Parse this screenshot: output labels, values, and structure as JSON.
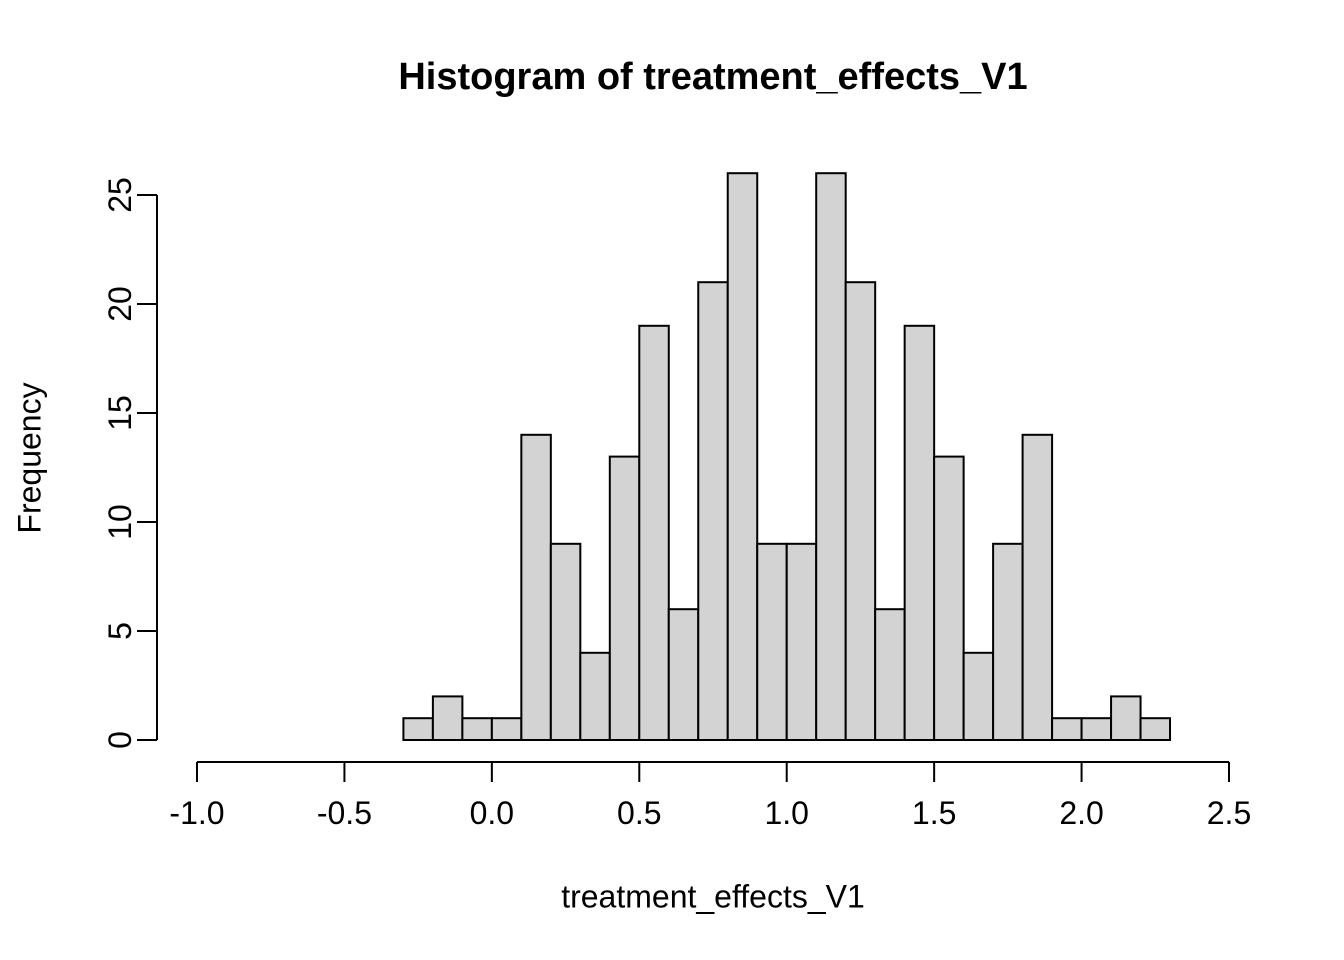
{
  "chart_data": {
    "type": "bar",
    "subtype": "histogram",
    "title": "Histogram of treatment_effects_V1",
    "xlabel": "treatment_effects_V1",
    "ylabel": "Frequency",
    "bin_start": -0.3,
    "bin_width": 0.1,
    "counts": [
      1,
      2,
      1,
      1,
      14,
      9,
      4,
      13,
      19,
      6,
      21,
      26,
      9,
      9,
      26,
      21,
      6,
      19,
      13,
      4,
      9,
      14,
      1,
      1,
      2,
      1
    ],
    "x_tick_values": [
      -1.0,
      -0.5,
      0.0,
      0.5,
      1.0,
      1.5,
      2.0,
      2.5
    ],
    "x_tick_labels": [
      "-1.0",
      "-0.5",
      "0.0",
      "0.5",
      "1.0",
      "1.5",
      "2.0",
      "2.5"
    ],
    "y_tick_values": [
      0,
      5,
      10,
      15,
      20,
      25
    ],
    "y_tick_labels": [
      "0",
      "5",
      "10",
      "15",
      "20",
      "25"
    ],
    "xlim": [
      -1.0,
      2.5
    ],
    "ylim": [
      0,
      25
    ],
    "grid": "off",
    "legend": "none",
    "colors": {
      "bar_fill": "#d3d3d3",
      "bar_stroke": "#000000",
      "axis": "#000000",
      "text": "#000000",
      "background": "#ffffff"
    }
  }
}
